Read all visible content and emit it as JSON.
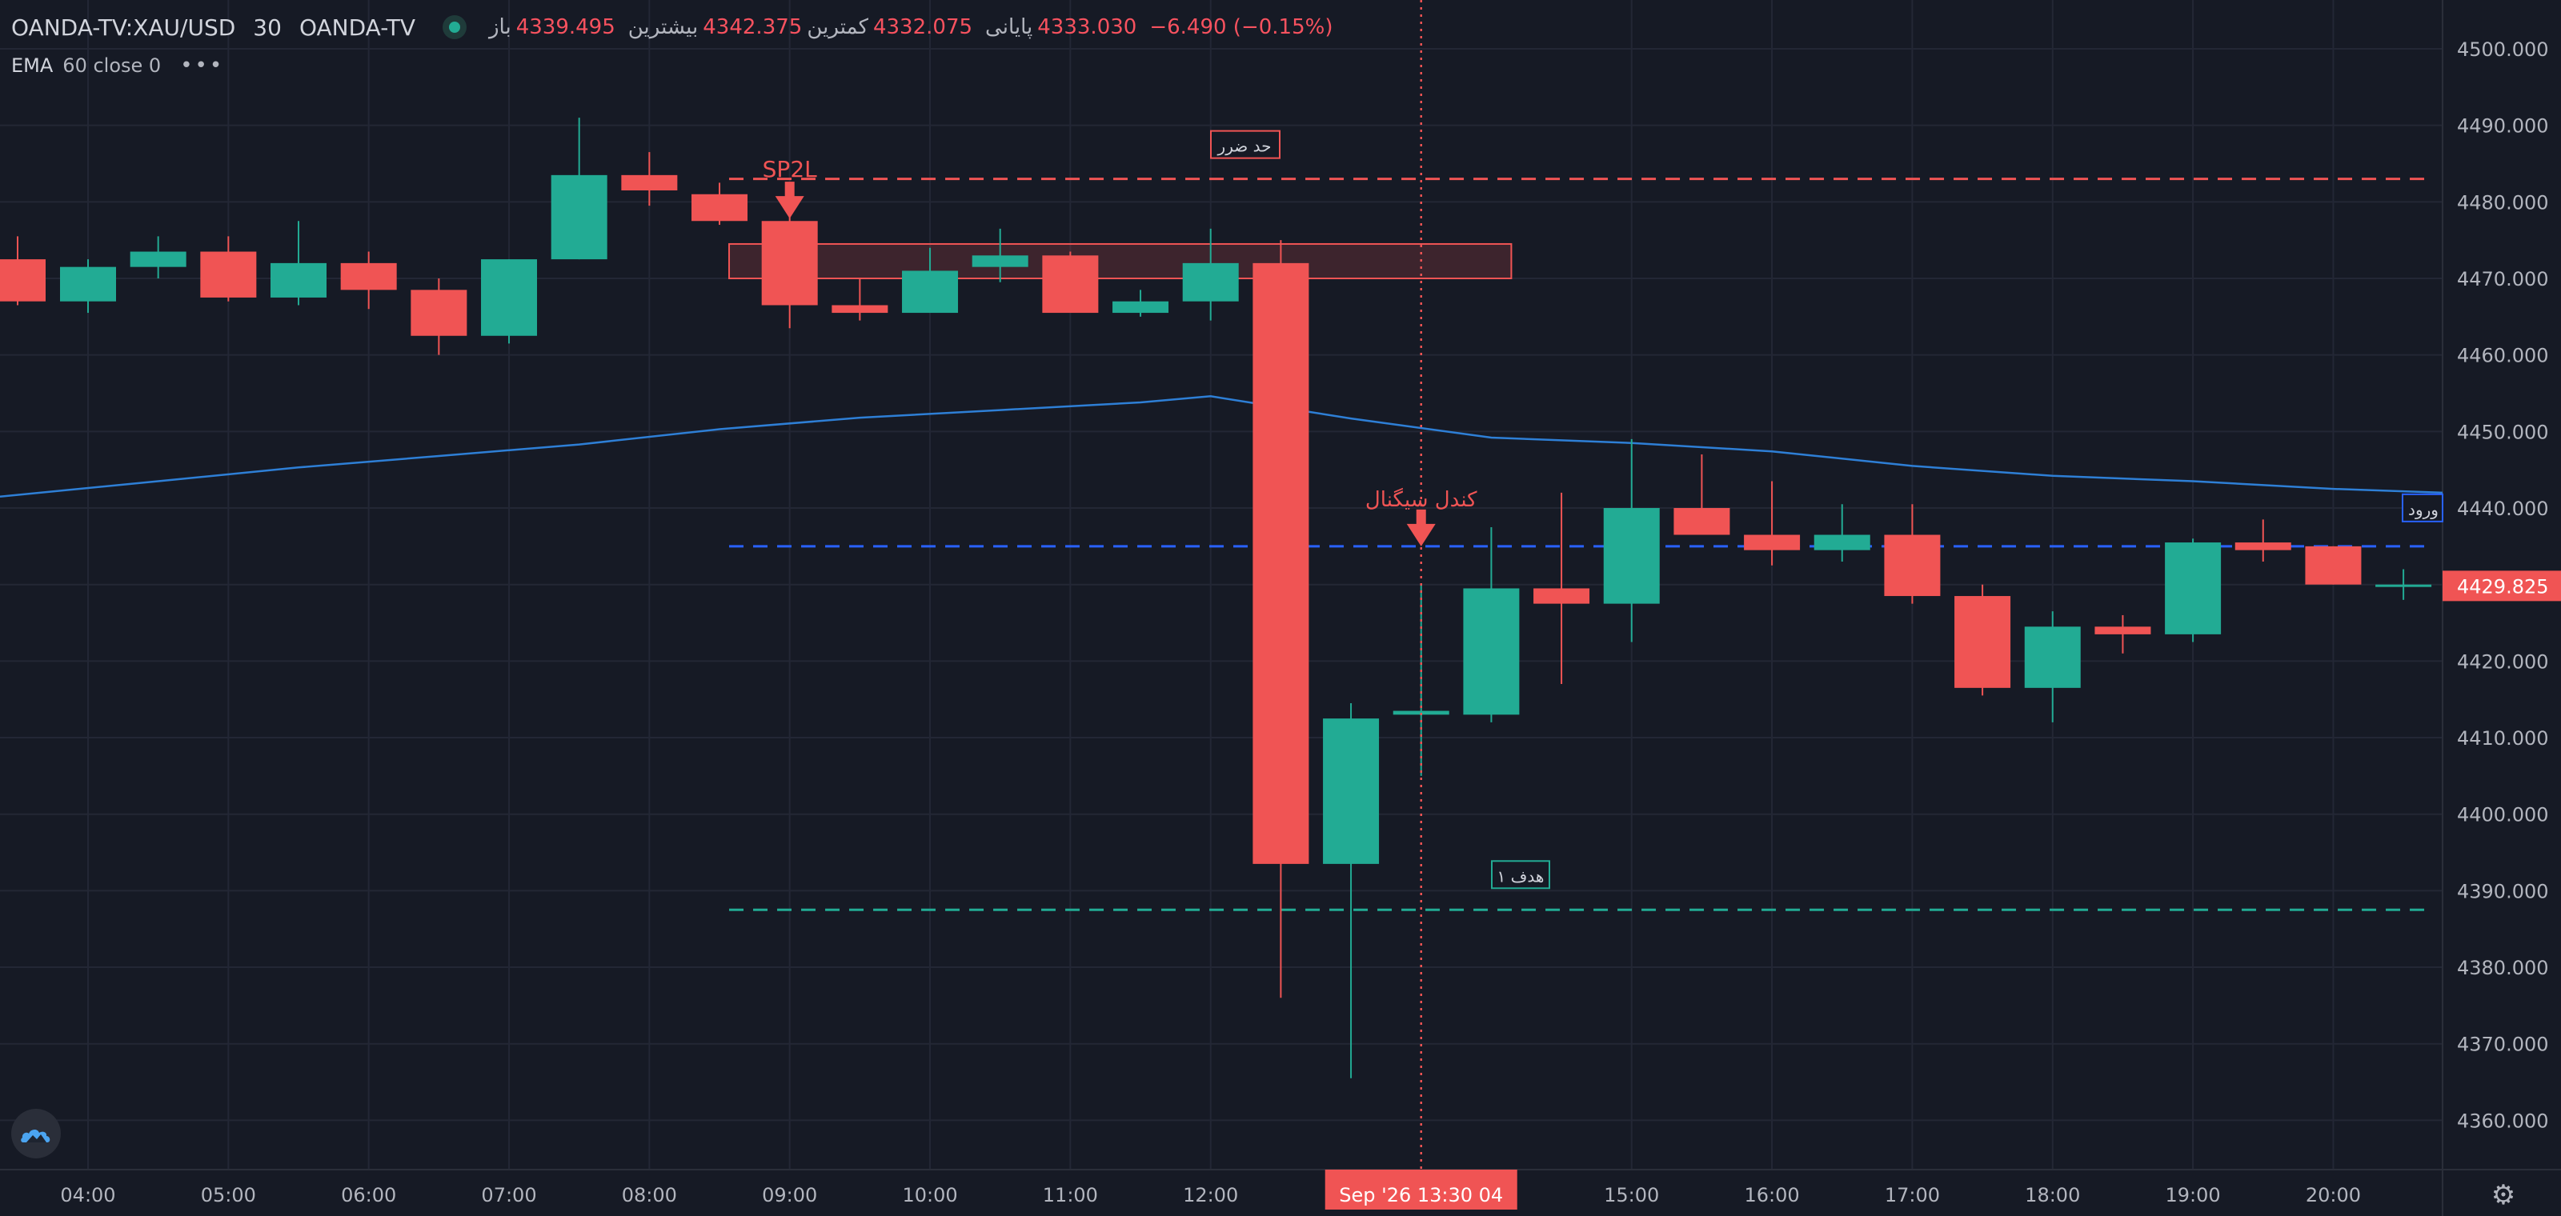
{
  "header": {
    "symbol": "OANDA-TV:XAU/USD",
    "timeframe": "30",
    "source": "OANDA-TV",
    "open_label": "باز",
    "open": "4339.495",
    "high_label": "بیشترین",
    "high": "4342.375",
    "low_label": "کمترین",
    "low": "4332.075",
    "close_label": "پایانی",
    "close": "4333.030",
    "change": "−6.490 (−0.15%)"
  },
  "indicator": {
    "name": "EMA",
    "params": "60 close 0",
    "more": "•••"
  },
  "colors": {
    "background": "#161a25",
    "up": "#22ab94",
    "down": "#f05454",
    "ema": "#2e7fd6",
    "entry": "#2962ff",
    "grid": "#232735",
    "text": "#b2b5be"
  },
  "chart_data": {
    "type": "candlestick",
    "title": "",
    "x_tick_labels": [
      "04:00",
      "05:00",
      "06:00",
      "07:00",
      "08:00",
      "09:00",
      "10:00",
      "11:00",
      "12:00",
      "15:00",
      "16:00",
      "17:00",
      "18:00",
      "19:00",
      "20:00"
    ],
    "y_tick_labels": [
      "4500.000",
      "4490.000",
      "4480.000",
      "4470.000",
      "4460.000",
      "4450.000",
      "4440.000",
      "4430.000",
      "4420.000",
      "4410.000",
      "4400.000",
      "4390.000",
      "4380.000",
      "4370.000",
      "4360.000"
    ],
    "ylim": [
      4353,
      4505
    ],
    "grid": true,
    "candles": [
      {
        "time": "03:30",
        "open": 4472.5,
        "high": 4475.5,
        "low": 4466.5,
        "close": 4467.0
      },
      {
        "time": "04:00",
        "open": 4467.0,
        "high": 4472.5,
        "low": 4465.5,
        "close": 4471.5
      },
      {
        "time": "04:30",
        "open": 4471.5,
        "high": 4475.5,
        "low": 4470.0,
        "close": 4473.5
      },
      {
        "time": "05:00",
        "open": 4473.5,
        "high": 4475.5,
        "low": 4467.0,
        "close": 4467.5
      },
      {
        "time": "05:30",
        "open": 4467.5,
        "high": 4477.5,
        "low": 4466.5,
        "close": 4472.0
      },
      {
        "time": "06:00",
        "open": 4472.0,
        "high": 4473.5,
        "low": 4466.0,
        "close": 4468.5
      },
      {
        "time": "06:30",
        "open": 4468.5,
        "high": 4470.0,
        "low": 4460.0,
        "close": 4462.5
      },
      {
        "time": "07:00",
        "open": 4462.5,
        "high": 4472.5,
        "low": 4461.5,
        "close": 4472.5
      },
      {
        "time": "07:30",
        "open": 4472.5,
        "high": 4491.0,
        "low": 4472.5,
        "close": 4483.5
      },
      {
        "time": "08:00",
        "open": 4483.5,
        "high": 4486.5,
        "low": 4479.5,
        "close": 4481.5
      },
      {
        "time": "08:30",
        "open": 4481.0,
        "high": 4482.5,
        "low": 4477.0,
        "close": 4477.5
      },
      {
        "time": "09:00",
        "open": 4477.5,
        "high": 4480.0,
        "low": 4463.5,
        "close": 4466.5
      },
      {
        "time": "09:30",
        "open": 4466.5,
        "high": 4470.0,
        "low": 4464.5,
        "close": 4465.5
      },
      {
        "time": "10:00",
        "open": 4465.5,
        "high": 4474.0,
        "low": 4465.5,
        "close": 4471.0
      },
      {
        "time": "10:30",
        "open": 4471.5,
        "high": 4476.5,
        "low": 4469.5,
        "close": 4473.0
      },
      {
        "time": "11:00",
        "open": 4473.0,
        "high": 4473.5,
        "low": 4465.5,
        "close": 4465.5
      },
      {
        "time": "11:30",
        "open": 4465.5,
        "high": 4468.5,
        "low": 4465.0,
        "close": 4467.0
      },
      {
        "time": "12:00",
        "open": 4467.0,
        "high": 4476.5,
        "low": 4464.5,
        "close": 4472.0
      },
      {
        "time": "12:30",
        "open": 4472.0,
        "high": 4475.0,
        "low": 4376.0,
        "close": 4393.5
      },
      {
        "time": "13:00",
        "open": 4393.5,
        "high": 4414.5,
        "low": 4365.5,
        "close": 4412.5
      },
      {
        "time": "13:30",
        "open": 4413.0,
        "high": 4430.0,
        "low": 4405.0,
        "close": 4413.5
      },
      {
        "time": "14:00",
        "open": 4413.0,
        "high": 4437.5,
        "low": 4412.0,
        "close": 4429.5
      },
      {
        "time": "14:30",
        "open": 4429.5,
        "high": 4442.0,
        "low": 4417.0,
        "close": 4427.5
      },
      {
        "time": "15:00",
        "open": 4427.5,
        "high": 4449.0,
        "low": 4422.5,
        "close": 4440.0
      },
      {
        "time": "15:30",
        "open": 4440.0,
        "high": 4447.0,
        "low": 4436.5,
        "close": 4436.5
      },
      {
        "time": "16:00",
        "open": 4436.5,
        "high": 4443.5,
        "low": 4432.5,
        "close": 4434.5
      },
      {
        "time": "16:30",
        "open": 4434.5,
        "high": 4440.5,
        "low": 4433.0,
        "close": 4436.5
      },
      {
        "time": "17:00",
        "open": 4436.5,
        "high": 4440.5,
        "low": 4427.5,
        "close": 4428.5
      },
      {
        "time": "17:30",
        "open": 4428.5,
        "high": 4430.0,
        "low": 4415.5,
        "close": 4416.5
      },
      {
        "time": "18:00",
        "open": 4416.5,
        "high": 4426.5,
        "low": 4412.0,
        "close": 4424.5
      },
      {
        "time": "18:30",
        "open": 4424.5,
        "high": 4426.0,
        "low": 4421.0,
        "close": 4423.5
      },
      {
        "time": "19:00",
        "open": 4423.5,
        "high": 4436.0,
        "low": 4422.5,
        "close": 4435.5
      },
      {
        "time": "19:30",
        "open": 4435.5,
        "high": 4438.5,
        "low": 4433.0,
        "close": 4434.5
      },
      {
        "time": "20:00",
        "open": 4435.0,
        "high": 4435.0,
        "low": 4430.0,
        "close": 4430.0
      },
      {
        "time": "20:30",
        "open": 4430.0,
        "high": 4432.0,
        "low": 4428.0,
        "close": 4430.0
      }
    ],
    "ema_60": [
      {
        "time": "03:30",
        "value": 4441.5
      },
      {
        "time": "04:30",
        "value": 4443.5
      },
      {
        "time": "05:30",
        "value": 4445.3
      },
      {
        "time": "06:30",
        "value": 4446.8
      },
      {
        "time": "07:30",
        "value": 4448.3
      },
      {
        "time": "08:30",
        "value": 4450.3
      },
      {
        "time": "09:30",
        "value": 4451.8
      },
      {
        "time": "10:30",
        "value": 4452.8
      },
      {
        "time": "11:30",
        "value": 4453.8
      },
      {
        "time": "12:00",
        "value": 4454.6
      },
      {
        "time": "13:00",
        "value": 4451.7
      },
      {
        "time": "14:00",
        "value": 4449.2
      },
      {
        "time": "15:00",
        "value": 4448.5
      },
      {
        "time": "16:00",
        "value": 4447.4
      },
      {
        "time": "17:00",
        "value": 4445.5
      },
      {
        "time": "18:00",
        "value": 4444.2
      },
      {
        "time": "19:00",
        "value": 4443.5
      },
      {
        "time": "20:00",
        "value": 4442.5
      },
      {
        "time": "20:45",
        "value": 4442.0
      }
    ],
    "levels": {
      "stop_loss": {
        "value": 4483.0,
        "label": "حد ضرر"
      },
      "entry": {
        "value": 4435.0,
        "label": "ورود"
      },
      "target_1": {
        "value": 4387.5,
        "label": "هدف ۱"
      }
    },
    "zone": {
      "top": 4474.5,
      "bottom": 4470.0,
      "from_time": "08:30",
      "to_time": "14:00"
    },
    "markers": [
      {
        "time": "09:00",
        "price": 4479.5,
        "label": "SP2L"
      },
      {
        "time": "13:30",
        "price": 4435.0,
        "label": "کندل سیگنال"
      }
    ],
    "crosshair": {
      "time": "13:30"
    },
    "current_price": "4429.825",
    "time_badge": {
      "date": "Sep '26",
      "time": "13:30 04"
    }
  }
}
